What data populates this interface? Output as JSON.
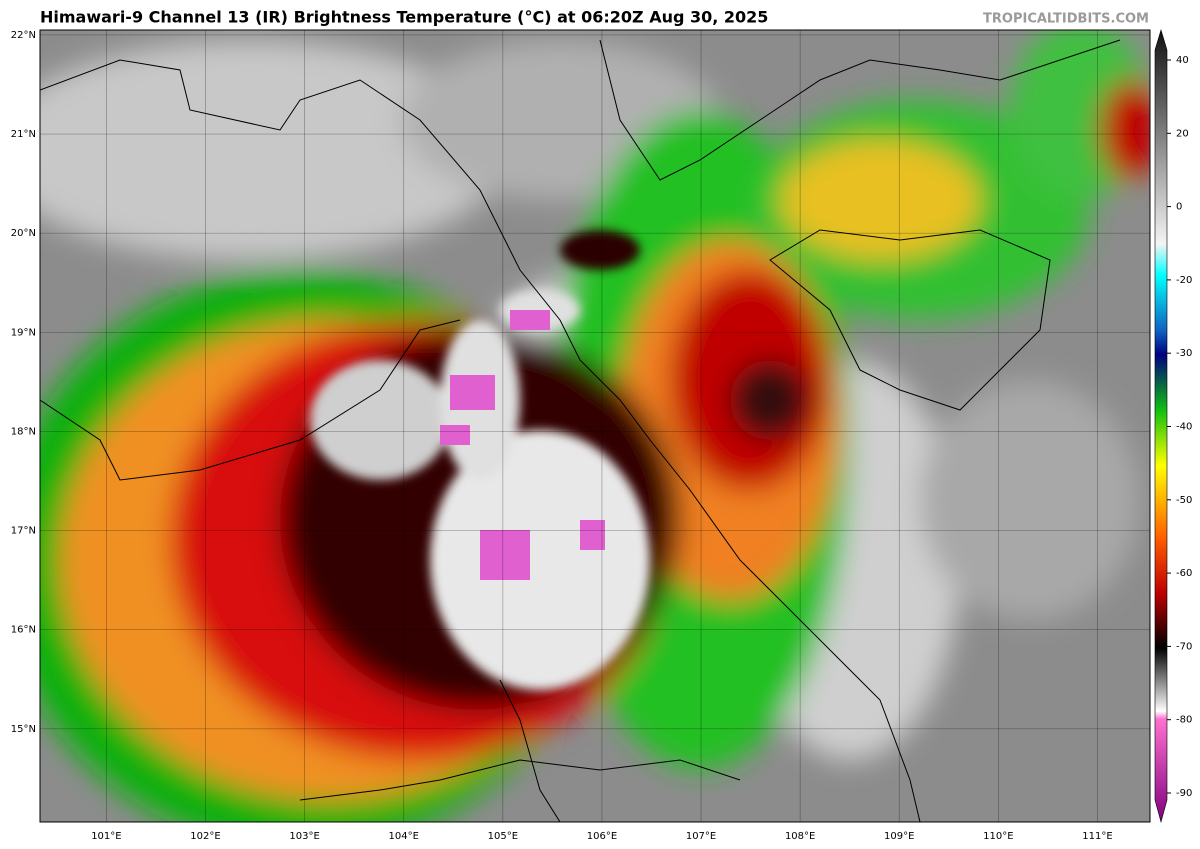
{
  "title": "Himawari-9 Channel 13 (IR) Brightness Temperature (°C) at 06:20Z Aug 30, 2025",
  "credit": "TROPICALTIDBITS.COM",
  "map": {
    "xlim": [
      100.33,
      111.53
    ],
    "ylim": [
      14.06,
      22.05
    ],
    "lat_ticks": [
      {
        "value": 15,
        "label": "15°N"
      },
      {
        "value": 16,
        "label": "16°N"
      },
      {
        "value": 17,
        "label": "17°N"
      },
      {
        "value": 18,
        "label": "18°N"
      },
      {
        "value": 19,
        "label": "19°N"
      },
      {
        "value": 20,
        "label": "20°N"
      },
      {
        "value": 21,
        "label": "21°N"
      },
      {
        "value": 22,
        "label": "22°N"
      }
    ],
    "lon_ticks": [
      {
        "value": 101,
        "label": "101°E"
      },
      {
        "value": 102,
        "label": "102°E"
      },
      {
        "value": 103,
        "label": "103°E"
      },
      {
        "value": 104,
        "label": "104°E"
      },
      {
        "value": 105,
        "label": "105°E"
      },
      {
        "value": 106,
        "label": "106°E"
      },
      {
        "value": 107,
        "label": "107°E"
      },
      {
        "value": 108,
        "label": "108°E"
      },
      {
        "value": 109,
        "label": "109°E"
      },
      {
        "value": 110,
        "label": "110°E"
      },
      {
        "value": 111,
        "label": "111°E"
      }
    ]
  },
  "colorbar": {
    "ticks": [
      40,
      20,
      0,
      -20,
      -30,
      -40,
      -50,
      -60,
      -70,
      -80,
      -90
    ]
  }
}
